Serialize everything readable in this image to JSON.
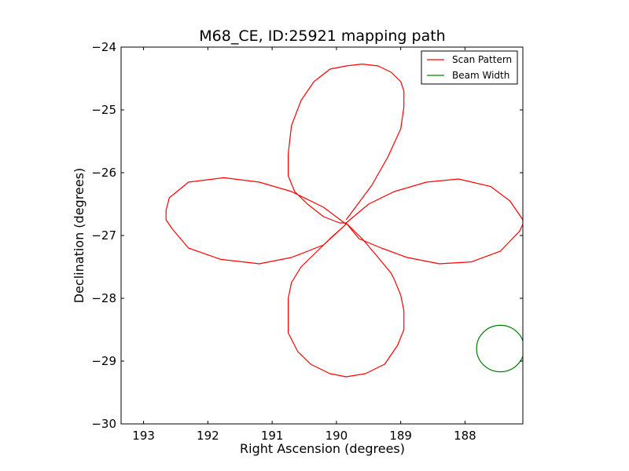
{
  "chart_data": {
    "type": "line",
    "title": "M68_CE, ID:25921 mapping path",
    "xlabel": "Right Ascension (degrees)",
    "ylabel": "Declination (degrees)",
    "xlim": [
      193.35,
      187.1
    ],
    "ylim": [
      -30,
      -24
    ],
    "x_inverted": true,
    "xticks": [
      193,
      192,
      191,
      190,
      189,
      188
    ],
    "xtick_labels": [
      "193",
      "192",
      "191",
      "190",
      "189",
      "188"
    ],
    "yticks": [
      -24,
      -25,
      -26,
      -27,
      -28,
      -29,
      -30
    ],
    "ytick_labels": [
      "−24",
      "−25",
      "−26",
      "−27",
      "−28",
      "−29",
      "−30"
    ],
    "grid": false,
    "legend_position": "top-right",
    "legend": [
      {
        "label": "Scan Pattern",
        "color": "#ff0000"
      },
      {
        "label": "Beam Width",
        "color": "#008000"
      }
    ],
    "series": [
      {
        "name": "Scan Pattern",
        "color": "#ff0000",
        "x": [
          189.85,
          189.45,
          189.2,
          189.0,
          188.95,
          188.95,
          189.0,
          189.15,
          189.35,
          189.6,
          189.85,
          190.1,
          190.35,
          190.55,
          190.7,
          190.75,
          190.75,
          190.65,
          190.45,
          190.2,
          189.95,
          189.85,
          189.5,
          189.1,
          188.6,
          188.1,
          187.6,
          187.3,
          187.1,
          187.1,
          187.15,
          187.45,
          187.9,
          188.4,
          188.9,
          189.3,
          189.65,
          189.85,
          189.6,
          189.35,
          189.15,
          189.1,
          189.0,
          188.95,
          188.95,
          189.05,
          189.25,
          189.55,
          189.85,
          190.1,
          190.4,
          190.6,
          190.75,
          190.75,
          190.7,
          190.55,
          190.35,
          190.1,
          189.85,
          190.2,
          190.7,
          191.2,
          191.75,
          192.3,
          192.6,
          192.65,
          192.65,
          192.55,
          192.3,
          191.8,
          191.2,
          190.7,
          190.2,
          189.85
        ],
        "y": [
          -26.75,
          -26.2,
          -25.75,
          -25.3,
          -24.95,
          -24.7,
          -24.55,
          -24.4,
          -24.3,
          -24.27,
          -24.3,
          -24.35,
          -24.55,
          -24.85,
          -25.25,
          -25.7,
          -26.05,
          -26.3,
          -26.5,
          -26.7,
          -26.8,
          -26.8,
          -26.5,
          -26.3,
          -26.15,
          -26.1,
          -26.22,
          -26.45,
          -26.75,
          -26.82,
          -26.93,
          -27.25,
          -27.42,
          -27.45,
          -27.35,
          -27.2,
          -27.05,
          -26.8,
          -27.05,
          -27.35,
          -27.6,
          -27.7,
          -27.95,
          -28.2,
          -28.5,
          -28.75,
          -29.05,
          -29.2,
          -29.25,
          -29.2,
          -29.05,
          -28.85,
          -28.55,
          -28.0,
          -27.75,
          -27.5,
          -27.3,
          -27.05,
          -26.82,
          -26.55,
          -26.3,
          -26.15,
          -26.08,
          -26.15,
          -26.4,
          -26.6,
          -26.75,
          -26.9,
          -27.2,
          -27.38,
          -27.45,
          -27.35,
          -27.15,
          -26.82
        ]
      },
      {
        "name": "Beam Width",
        "color": "#008000",
        "shape": "circle",
        "center": [
          187.45,
          -28.8
        ],
        "radius_deg": 0.37
      }
    ]
  }
}
